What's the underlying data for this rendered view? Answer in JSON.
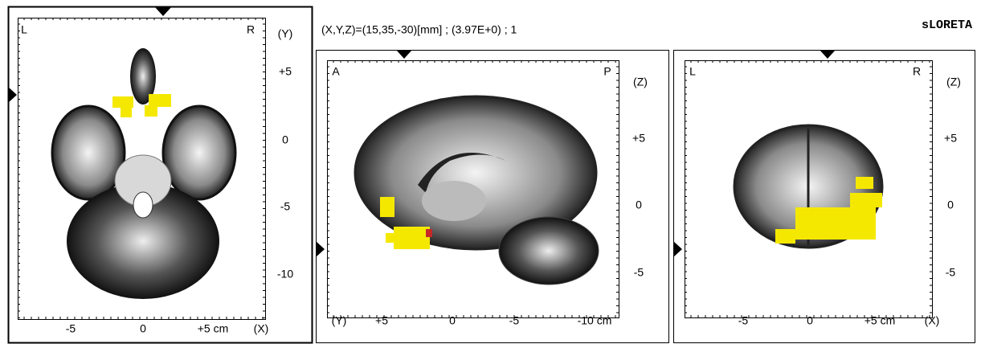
{
  "header": {
    "coordinates": "(X,Y,Z)=(15,35,-30)[mm]  ;  (3.97E+0)  ;  1",
    "method": "sLORETA"
  },
  "panels": [
    {
      "corner_left": "L",
      "corner_right": "R",
      "vertical_axis": "(Y)",
      "vertical_ticks": [
        "+5",
        "0",
        "-5",
        "-10"
      ],
      "horizontal_axis": "(X)",
      "horizontal_ticks": [
        "-5",
        "0",
        "+5 cm"
      ]
    },
    {
      "corner_left": "A",
      "corner_right": "P",
      "vertical_axis": "(Z)",
      "vertical_ticks": [
        "+5",
        "0",
        "-5"
      ],
      "horizontal_axis": "(Y)",
      "horizontal_ticks": [
        "+5",
        "0",
        "-5",
        "-10 cm"
      ]
    },
    {
      "corner_left": "L",
      "corner_right": "R",
      "vertical_axis": "(Z)",
      "vertical_ticks": [
        "+5",
        "0",
        "-5"
      ],
      "horizontal_axis": "(X)",
      "horizontal_ticks": [
        "-5",
        "0",
        "+5 cm"
      ]
    }
  ]
}
